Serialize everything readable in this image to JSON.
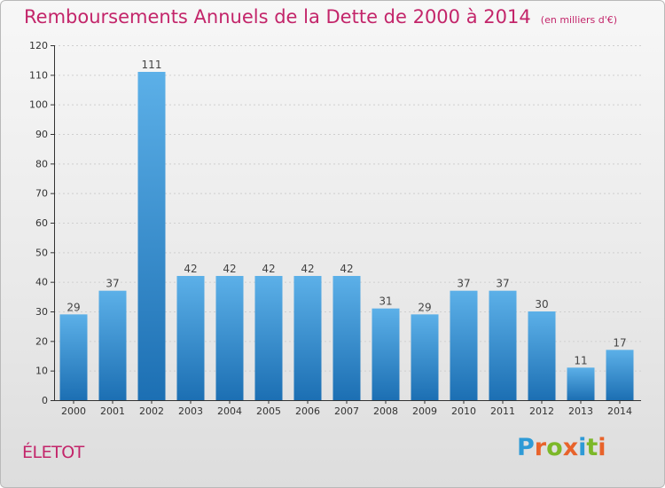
{
  "header": {
    "title": "Remboursements Annuels de la Dette de 2000 à 2014",
    "unit": "(en milliers d'€)"
  },
  "footer": {
    "commune": "ÉLETOT",
    "logo": {
      "text": "Proxiti",
      "letter_colors": [
        "#2e9ad6",
        "#e8632b",
        "#7cb829",
        "#e8632b",
        "#2e9ad6",
        "#7cb829",
        "#e8632b"
      ]
    }
  },
  "colors": {
    "title": "#c3256a",
    "bar_light": "#5cb0e8",
    "bar_dark": "#1c6fb3",
    "axis": "#333333",
    "grid": "#cfcfcf"
  },
  "chart_data": {
    "type": "bar",
    "title": "Remboursements Annuels de la Dette de 2000 à 2014",
    "ylabel": "",
    "xlabel": "",
    "categories": [
      "2000",
      "2001",
      "2002",
      "2003",
      "2004",
      "2005",
      "2006",
      "2007",
      "2008",
      "2009",
      "2010",
      "2011",
      "2012",
      "2013",
      "2014"
    ],
    "values": [
      29,
      37,
      111,
      42,
      42,
      42,
      42,
      42,
      31,
      29,
      37,
      37,
      30,
      11,
      17
    ],
    "ylim": [
      0,
      120
    ],
    "yticks": [
      0,
      10,
      20,
      30,
      40,
      50,
      60,
      70,
      80,
      90,
      100,
      110,
      120
    ],
    "grid": true,
    "data_labels": true
  }
}
